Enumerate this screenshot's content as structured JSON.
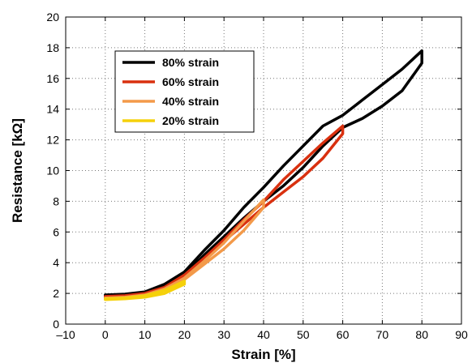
{
  "chart_data": {
    "type": "line",
    "title": "",
    "xlabel": "Strain [%]",
    "ylabel": "Resistance [kΩ]",
    "xlim": [
      -10,
      90
    ],
    "ylim": [
      0,
      20
    ],
    "xticks": [
      -10,
      0,
      10,
      20,
      30,
      40,
      50,
      60,
      70,
      80,
      90
    ],
    "yticks": [
      0,
      2,
      4,
      6,
      8,
      10,
      12,
      14,
      16,
      18,
      20
    ],
    "xtick_labels": [
      "–10",
      "0",
      "10",
      "20",
      "30",
      "40",
      "50",
      "60",
      "70",
      "80",
      "90"
    ],
    "ytick_labels": [
      "0",
      "2",
      "4",
      "6",
      "8",
      "10",
      "12",
      "14",
      "16",
      "18",
      "20"
    ],
    "grid": true,
    "grid_style": "dotted",
    "legend_position": "top-left",
    "series": [
      {
        "name": "80% strain",
        "color": "#000000",
        "loading": [
          [
            0,
            1.9
          ],
          [
            5,
            1.95
          ],
          [
            10,
            2.1
          ],
          [
            15,
            2.6
          ],
          [
            20,
            3.4
          ],
          [
            25,
            4.8
          ],
          [
            30,
            6.1
          ],
          [
            35,
            7.6
          ],
          [
            40,
            8.9
          ],
          [
            45,
            10.3
          ],
          [
            50,
            11.6
          ],
          [
            55,
            12.9
          ],
          [
            60,
            13.6
          ],
          [
            65,
            14.6
          ],
          [
            70,
            15.6
          ],
          [
            75,
            16.6
          ],
          [
            80,
            17.8
          ]
        ],
        "unloading": [
          [
            80,
            17.0
          ],
          [
            75,
            15.2
          ],
          [
            70,
            14.2
          ],
          [
            65,
            13.4
          ],
          [
            60,
            12.8
          ],
          [
            55,
            11.6
          ],
          [
            50,
            10.2
          ],
          [
            45,
            9.0
          ],
          [
            40,
            8.0
          ],
          [
            35,
            6.9
          ],
          [
            30,
            5.7
          ],
          [
            25,
            4.5
          ],
          [
            20,
            3.2
          ],
          [
            15,
            2.5
          ],
          [
            10,
            2.05
          ],
          [
            5,
            1.9
          ],
          [
            0,
            1.85
          ]
        ]
      },
      {
        "name": "60% strain",
        "color": "#d9300f",
        "loading": [
          [
            0,
            1.8
          ],
          [
            5,
            1.85
          ],
          [
            10,
            2.0
          ],
          [
            15,
            2.4
          ],
          [
            20,
            3.2
          ],
          [
            25,
            4.3
          ],
          [
            30,
            5.5
          ],
          [
            35,
            6.8
          ],
          [
            40,
            8.0
          ],
          [
            45,
            9.4
          ],
          [
            50,
            10.6
          ],
          [
            55,
            11.8
          ],
          [
            60,
            12.9
          ]
        ],
        "unloading": [
          [
            60,
            12.4
          ],
          [
            55,
            10.8
          ],
          [
            50,
            9.6
          ],
          [
            45,
            8.6
          ],
          [
            40,
            7.6
          ],
          [
            35,
            6.5
          ],
          [
            30,
            5.4
          ],
          [
            25,
            4.2
          ],
          [
            20,
            3.0
          ],
          [
            15,
            2.3
          ],
          [
            10,
            1.95
          ],
          [
            5,
            1.8
          ],
          [
            0,
            1.75
          ]
        ]
      },
      {
        "name": "40% strain",
        "color": "#f39a4a",
        "loading": [
          [
            0,
            1.7
          ],
          [
            5,
            1.75
          ],
          [
            10,
            1.9
          ],
          [
            15,
            2.3
          ],
          [
            20,
            3.0
          ],
          [
            25,
            4.1
          ],
          [
            30,
            5.3
          ],
          [
            35,
            6.7
          ],
          [
            40,
            8.1
          ]
        ],
        "unloading": [
          [
            40,
            7.6
          ],
          [
            35,
            6.1
          ],
          [
            30,
            4.9
          ],
          [
            25,
            3.9
          ],
          [
            20,
            2.9
          ],
          [
            15,
            2.2
          ],
          [
            10,
            1.85
          ],
          [
            5,
            1.7
          ],
          [
            0,
            1.65
          ]
        ]
      },
      {
        "name": "20% strain",
        "color": "#f5d10a",
        "loading": [
          [
            0,
            1.65
          ],
          [
            5,
            1.7
          ],
          [
            10,
            1.85
          ],
          [
            15,
            2.2
          ],
          [
            20,
            2.8
          ]
        ],
        "unloading": [
          [
            20,
            2.6
          ],
          [
            15,
            2.0
          ],
          [
            10,
            1.75
          ],
          [
            5,
            1.65
          ],
          [
            0,
            1.6
          ]
        ]
      }
    ]
  }
}
